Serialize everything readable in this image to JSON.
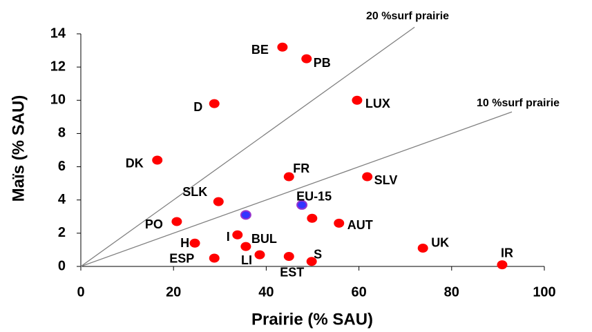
{
  "chart_data": {
    "type": "scatter",
    "x_label": "Prairie (% SAU)",
    "y_label": "Maïs (% SAU)",
    "xlim": [
      0,
      100
    ],
    "xticks": [
      0,
      20,
      40,
      60,
      80,
      100
    ],
    "ylim": [
      0,
      14
    ],
    "yticks": [
      0,
      2,
      4,
      6,
      8,
      10,
      12,
      14
    ],
    "labels": [
      "BE",
      "PB",
      "D",
      "LUX",
      "DK",
      "FR",
      "SLV",
      "SLK",
      "EU-15",
      null,
      "PO",
      null,
      "AUT",
      "I",
      "BUL",
      "H",
      "LI",
      "ESP",
      "EST",
      "S",
      "UK",
      "IR"
    ],
    "x": [
      43.5,
      48.7,
      28.8,
      59.6,
      16.5,
      44.9,
      61.8,
      29.7,
      47.7,
      35.6,
      20.7,
      49.9,
      55.7,
      33.8,
      35.6,
      24.6,
      38.6,
      28.8,
      44.9,
      49.8,
      73.8,
      90.9
    ],
    "values": [
      13.2,
      12.5,
      9.8,
      10.0,
      6.4,
      5.4,
      5.4,
      3.9,
      3.7,
      3.1,
      2.7,
      2.9,
      2.6,
      1.9,
      1.2,
      1.4,
      0.7,
      0.5,
      0.6,
      0.3,
      1.1,
      0.1
    ],
    "colors": [
      "#ff0000",
      "#ff0000",
      "#ff0000",
      "#ff0000",
      "#ff0000",
      "#ff0000",
      "#ff0000",
      "#ff0000",
      "#3333ff",
      "#3333ff",
      "#ff0000",
      "#ff0000",
      "#ff0000",
      "#ff0000",
      "#ff0000",
      "#ff0000",
      "#ff0000",
      "#ff0000",
      "#ff0000",
      "#ff0000",
      "#ff0000",
      "#ff0000"
    ],
    "reference_lines": [
      {
        "label": "20 %surf prairie",
        "slope": 0.2,
        "x_end": 72
      },
      {
        "label": "10 %surf prairie",
        "slope": 0.1,
        "x_end": 93
      }
    ]
  }
}
